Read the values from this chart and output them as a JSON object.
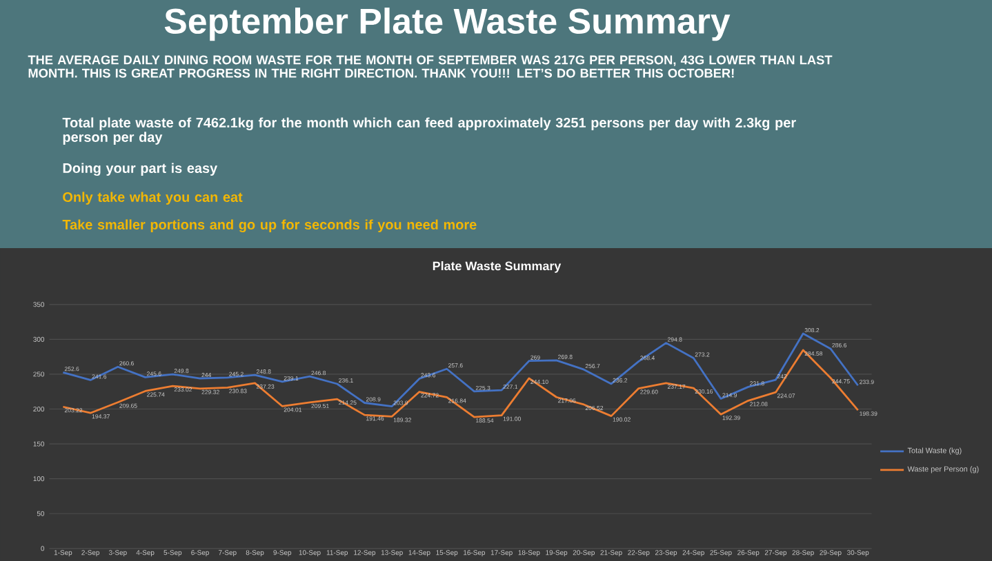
{
  "chart_data": {
    "type": "line",
    "title": "September Plate Waste Summary",
    "subtitle": "Plate Waste Summary",
    "annotations": [
      "THE AVERAGE DAILY DINING ROOM WASTE FOR THE MONTH OF SEPTEMBER WAS 217G PER PERSON, 43G LOWER THAN LAST MONTH. THIS IS GREAT PROGRESS IN THE RIGHT DIRECTION. THANK YOU!!! LET’S DO BETTER THIS OCTOBER!",
      "Total plate waste of 7462.1kg for the month which can feed approximately 3251 persons per day with 2.3kg per person per day",
      "Doing your part is easy",
      "Only take what you can eat",
      "Take smaller portions and go up for seconds if you need more"
    ],
    "categories": [
      "1-Sep",
      "2-Sep",
      "3-Sep",
      "4-Sep",
      "5-Sep",
      "6-Sep",
      "7-Sep",
      "8-Sep",
      "9-Sep",
      "10-Sep",
      "11-Sep",
      "12-Sep",
      "13-Sep",
      "14-Sep",
      "15-Sep",
      "16-Sep",
      "17-Sep",
      "18-Sep",
      "19-Sep",
      "20-Sep",
      "21-Sep",
      "22-Sep",
      "23-Sep",
      "24-Sep",
      "25-Sep",
      "26-Sep",
      "27-Sep",
      "28-Sep",
      "29-Sep",
      "30-Sep"
    ],
    "series": [
      {
        "name": "Total Waste (kg)",
        "color": "#4472c4",
        "values": [
          252.6,
          241.6,
          260.6,
          245.6,
          249.8,
          244,
          245.2,
          248.8,
          239.1,
          246.8,
          236.1,
          208.9,
          203.9,
          243.6,
          257.6,
          225.3,
          227.1,
          269,
          269.8,
          256.7,
          236.2,
          268.4,
          294.8,
          273.2,
          214.9,
          231.8,
          242,
          308.2,
          286.6,
          233.9
        ],
        "value_labels": [
          "252.6",
          "241.6",
          "260.6",
          "245.6",
          "249.8",
          "244",
          "245.2",
          "248.8",
          "239.1",
          "246.8",
          "236.1",
          "208.9",
          "203.9",
          "243.6",
          "257.6",
          "225.3",
          "227.1",
          "269",
          "269.8",
          "256.7",
          "236.2",
          "268.4",
          "294.8",
          "273.2",
          "214.9",
          "231.8",
          "242",
          "308.2",
          "286.6",
          "233.9"
        ]
      },
      {
        "name": "Waste per Person (g)",
        "color": "#ed7d31",
        "values": [
          203.22,
          194.37,
          209.65,
          225.74,
          233.02,
          229.32,
          230.83,
          237.23,
          204.01,
          209.51,
          214.25,
          191.46,
          189.32,
          224.72,
          216.84,
          188.54,
          191.0,
          244.1,
          217.06,
          206.52,
          190.02,
          229.6,
          237.17,
          230.16,
          192.39,
          212.08,
          224.07,
          284.58,
          244.75,
          198.39
        ],
        "value_labels": [
          "203.22",
          "194.37",
          "209.65",
          "225.74",
          "233.02",
          "229.32",
          "230.83",
          "237.23",
          "204.01",
          "209.51",
          "214.25",
          "191.46",
          "189.32",
          "224.72",
          "216.84",
          "188.54",
          "191.00",
          "244.10",
          "217.06",
          "206.52",
          "190.02",
          "229.60",
          "237.17",
          "230.16",
          "192.39",
          "212.08",
          "224.07",
          "284.58",
          "244.75",
          "198.39"
        ]
      }
    ],
    "ylim": [
      0,
      350
    ],
    "yticks": [
      0,
      50,
      100,
      150,
      200,
      250,
      300,
      350
    ],
    "grid": "y",
    "legend": "right"
  }
}
